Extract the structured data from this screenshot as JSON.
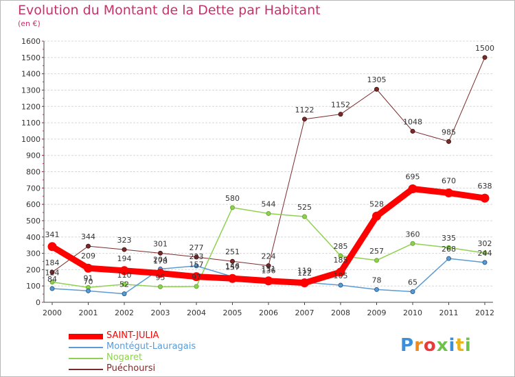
{
  "title": "Evolution du Montant de la Dette par Habitant",
  "unit_label": "(en €)",
  "logo_text": "Proxiti",
  "colors": {
    "title": "#c8306a",
    "saint_julia": "#ff0000",
    "montegut": "#5b9bd5",
    "nogaret": "#8fd14f",
    "puechoursi": "#7b2a2a"
  },
  "chart_data": {
    "type": "line",
    "title": "Evolution du Montant de la Dette par Habitant",
    "ylabel": "(en €)",
    "xlabel": "",
    "ylim": [
      0,
      1600
    ],
    "y_ticks": [
      0,
      100,
      200,
      300,
      400,
      500,
      600,
      700,
      800,
      900,
      1000,
      1100,
      1200,
      1300,
      1400,
      1500,
      1600
    ],
    "x": [
      "2000",
      "2001",
      "2002",
      "2003",
      "2004",
      "2005",
      "2006",
      "2007",
      "2008",
      "2009",
      "2010",
      "2011",
      "2012"
    ],
    "grid": "horizontal",
    "legend_position": "bottom-left",
    "series": [
      {
        "name": "SAINT-JULIA",
        "values": [
          341,
          209,
          194,
          178,
          157,
          146,
          131,
          119,
          185,
          528,
          695,
          670,
          638
        ]
      },
      {
        "name": "Montégut-Lauragais",
        "values": [
          84,
          70,
          52,
          204,
          223,
          157,
          136,
          122,
          105,
          78,
          65,
          268,
          244
        ]
      },
      {
        "name": "Nogaret",
        "values": [
          124,
          91,
          110,
          95,
          97,
          580,
          544,
          525,
          285,
          257,
          360,
          335,
          302
        ]
      },
      {
        "name": "Puéchoursi",
        "values": [
          184,
          344,
          323,
          301,
          277,
          251,
          224,
          1122,
          1152,
          1305,
          1048,
          985,
          1500
        ]
      }
    ]
  }
}
